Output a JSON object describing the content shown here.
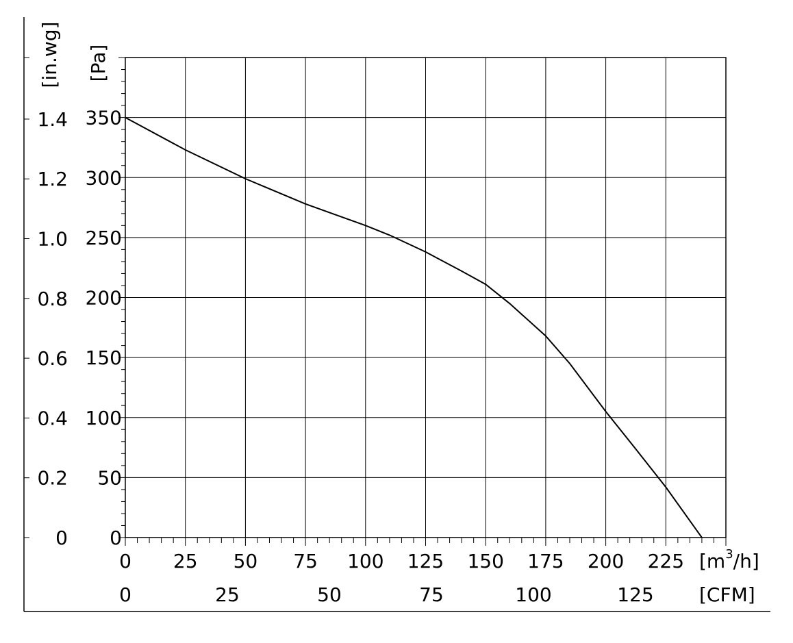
{
  "chart_data": {
    "type": "line",
    "x_unit": "[m³/h]",
    "x_unit_base": "[m",
    "x_unit_sup": "3",
    "x_unit_tail": "/h]",
    "x2_unit": "[CFM]",
    "y_unit": "[Pa]",
    "y2_unit": "[in.wg]",
    "xlim": [
      0,
      250
    ],
    "ylim": [
      0,
      400
    ],
    "grid": true,
    "x_ticks": [
      0,
      25,
      50,
      75,
      100,
      125,
      150,
      175,
      200,
      225
    ],
    "x2_ticks": [
      0,
      25,
      50,
      75,
      100,
      125
    ],
    "x2_per_x": 0.5886,
    "y_ticks": [
      0,
      50,
      100,
      150,
      200,
      250,
      300,
      350
    ],
    "y2_ticks": [
      "0",
      "0.2",
      "0.4",
      "0.6",
      "0.8",
      "1.0",
      "1.2",
      "1.4"
    ],
    "y2_per_y": 0.004015,
    "series": [
      {
        "x": [
          0,
          25,
          50,
          75,
          100,
          110,
          125,
          140,
          150,
          160,
          175,
          185,
          200,
          212,
          225,
          240
        ],
        "y": [
          350,
          323,
          299,
          278,
          260,
          252,
          238,
          222,
          211,
          195,
          168,
          145,
          105,
          75,
          42,
          0
        ]
      }
    ]
  }
}
